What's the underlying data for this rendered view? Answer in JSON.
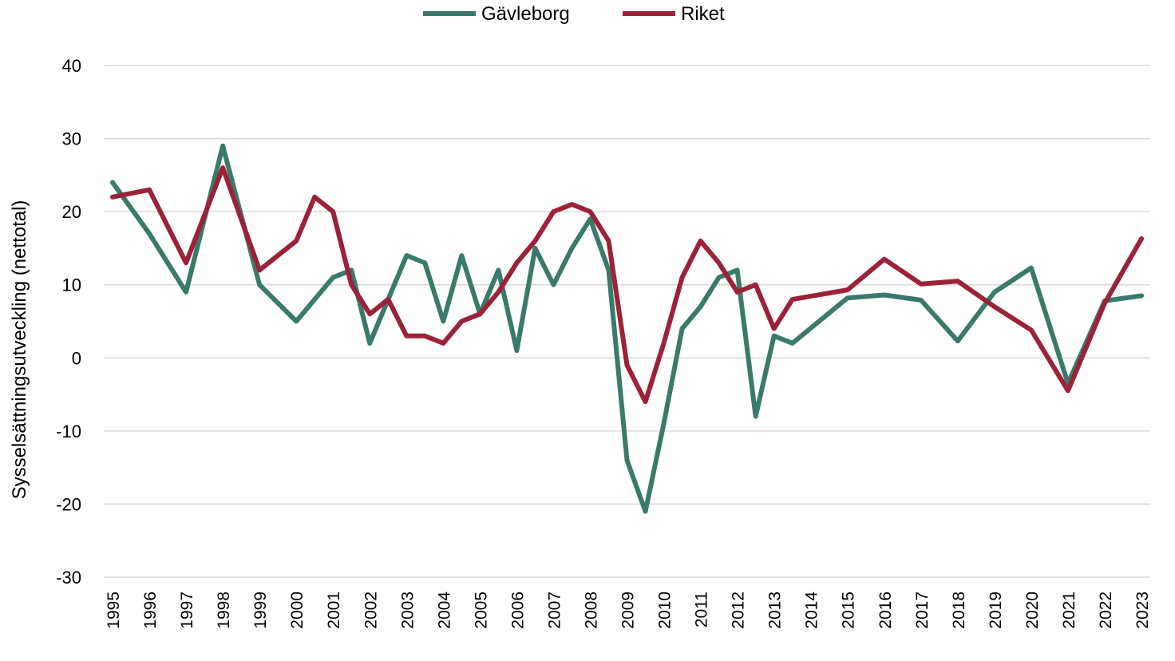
{
  "chart_data": {
    "type": "line",
    "ylabel": "Sysselsättningsutveckling (nettotal)",
    "ylim": [
      -30,
      40
    ],
    "yticks": [
      40,
      30,
      20,
      10,
      0,
      -10,
      -20,
      -30
    ],
    "ytick_labels": [
      "40",
      "30",
      "20",
      "10",
      "0",
      "-10",
      "-20",
      "-30"
    ],
    "categories": [
      "1995",
      "1996",
      "1997",
      "1998",
      "1999",
      "2000",
      "2001",
      "2002",
      "2003",
      "2004",
      "2005",
      "2006",
      "2007",
      "2008",
      "2009",
      "2010",
      "2011",
      "2012",
      "2013",
      "2014",
      "2015",
      "2016",
      "2017",
      "2018",
      "2019",
      "2020",
      "2021",
      "2022",
      "2023"
    ],
    "grid": true,
    "legend_position": "top-center",
    "series": [
      {
        "name": "Gävleborg",
        "color": "#3a7a6b",
        "points": [
          [
            1995,
            24
          ],
          [
            1996,
            17
          ],
          [
            1997,
            9
          ],
          [
            1998,
            29
          ],
          [
            1999,
            10
          ],
          [
            2000,
            5
          ],
          [
            2001,
            11
          ],
          [
            2001.5,
            12
          ],
          [
            2002,
            2
          ],
          [
            2002.5,
            8
          ],
          [
            2003,
            14
          ],
          [
            2003.5,
            13
          ],
          [
            2004,
            5
          ],
          [
            2004.5,
            14
          ],
          [
            2005,
            6
          ],
          [
            2005.5,
            12
          ],
          [
            2006,
            1
          ],
          [
            2006.5,
            15
          ],
          [
            2007,
            10
          ],
          [
            2007.5,
            15
          ],
          [
            2008,
            19
          ],
          [
            2008.5,
            12
          ],
          [
            2009,
            -14
          ],
          [
            2009.5,
            -21
          ],
          [
            2010,
            -9
          ],
          [
            2010.5,
            4
          ],
          [
            2011,
            7
          ],
          [
            2011.5,
            11
          ],
          [
            2012,
            12
          ],
          [
            2012.5,
            -8
          ],
          [
            2013,
            3
          ],
          [
            2013.5,
            2
          ],
          [
            2015,
            8.2
          ],
          [
            2016,
            8.6
          ],
          [
            2017,
            7.9
          ],
          [
            2018,
            2.3
          ],
          [
            2019,
            9
          ],
          [
            2020,
            12.3
          ],
          [
            2021,
            -3.5
          ],
          [
            2022,
            7.8
          ],
          [
            2023,
            8.5
          ]
        ]
      },
      {
        "name": "Riket",
        "color": "#9b2238",
        "points": [
          [
            1995,
            22
          ],
          [
            1996,
            23
          ],
          [
            1997,
            13
          ],
          [
            1998,
            26
          ],
          [
            1999,
            12
          ],
          [
            2000,
            16
          ],
          [
            2000.5,
            22
          ],
          [
            2001,
            20
          ],
          [
            2001.5,
            10
          ],
          [
            2002,
            6
          ],
          [
            2002.5,
            8
          ],
          [
            2003,
            3
          ],
          [
            2003.5,
            3
          ],
          [
            2004,
            2
          ],
          [
            2004.5,
            5
          ],
          [
            2005,
            6
          ],
          [
            2005.5,
            9
          ],
          [
            2006,
            13
          ],
          [
            2006.5,
            16
          ],
          [
            2007,
            20
          ],
          [
            2007.5,
            21
          ],
          [
            2008,
            20
          ],
          [
            2008.5,
            16
          ],
          [
            2009,
            -1
          ],
          [
            2009.5,
            -6
          ],
          [
            2010,
            2
          ],
          [
            2010.5,
            11
          ],
          [
            2011,
            16
          ],
          [
            2011.5,
            13
          ],
          [
            2012,
            9
          ],
          [
            2012.5,
            10
          ],
          [
            2013,
            4
          ],
          [
            2013.5,
            8
          ],
          [
            2015,
            9.3
          ],
          [
            2016,
            13.5
          ],
          [
            2017,
            10.1
          ],
          [
            2018,
            10.5
          ],
          [
            2019,
            7
          ],
          [
            2020,
            3.8
          ],
          [
            2021,
            -4.5
          ],
          [
            2022,
            7.5
          ],
          [
            2023,
            16.3
          ]
        ]
      }
    ]
  }
}
